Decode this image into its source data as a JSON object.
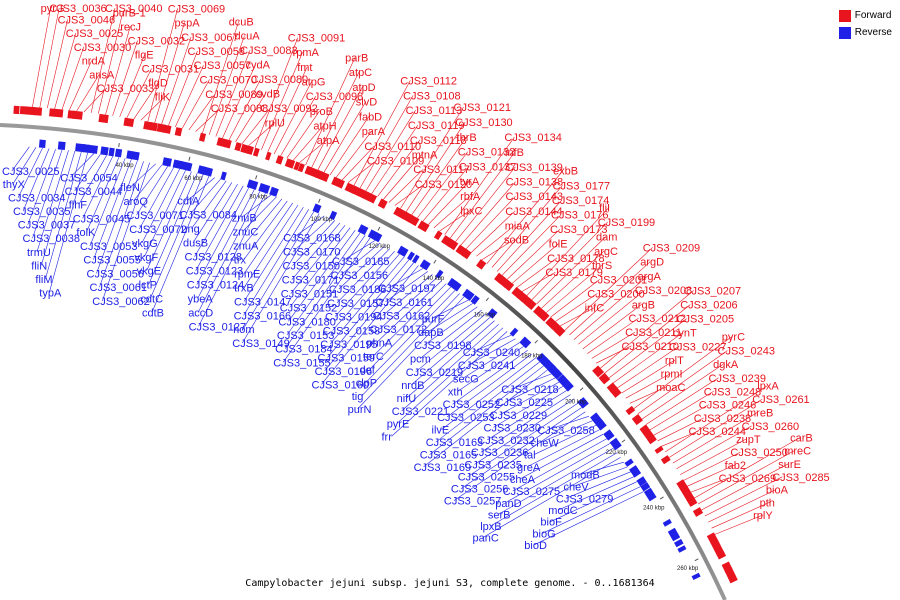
{
  "caption": "Campylobacter jejuni subsp. jejuni S3, complete genome. - 0..1681364",
  "legend": [
    {
      "label": "Forward",
      "color": "#e8141e"
    },
    {
      "label": "Reverse",
      "color": "#1f22e6"
    }
  ],
  "ticks": [
    "40 kbp",
    "60 kbp",
    "80 kbp",
    "100 kbp",
    "120 kbp",
    "140 kbp",
    "160 kbp",
    "180 kbp",
    "200 kbp",
    "220 kbp",
    "240 kbp",
    "260 kbp"
  ],
  "forward_labels": [
    "pyrG",
    "CJS3_0036",
    "CJS3_0046",
    "CJS3_0025",
    "CJS3_0030",
    "nrdA",
    "ansA",
    "CJS3_0033",
    "CJS3_0040",
    "purB-1",
    "recJ",
    "CJS3_0032",
    "flgE",
    "CJS3_0031",
    "flgD",
    "fliK",
    "CJS3_0069",
    "pspA",
    "CJS3_0067",
    "CJS3_0058",
    "CJS3_0057",
    "CJS3_0070",
    "CJS3_0089",
    "CJS3_0088",
    "dcuB",
    "dcuA",
    "CJS3_0083",
    "cydA",
    "CJS3_0080",
    "cvdB",
    "CJS3_0092",
    "rplU",
    "CJS3_0091",
    "rpmA",
    "fmt",
    "atpG",
    "CJS3_0098",
    "proB",
    "atpH",
    "atpA",
    "parB",
    "atpC",
    "atpD",
    "slvD",
    "fabD",
    "parA",
    "CJS3_0110",
    "CJS3_0109",
    "CJS3_0112",
    "CJS3_0108",
    "CJS3_0113",
    "CJS3_0119",
    "CJS3_0118",
    "mtnA",
    "CJS3_0117",
    "CJS3_0120",
    "CJS3_0121",
    "CJS3_0130",
    "thrB",
    "CJS3_0132",
    "CJS3_0137",
    "tyrA",
    "rbfA",
    "lpxC",
    "CJS3_0134",
    "infB",
    "CJS3_0139",
    "CJS3_0138",
    "CJS3_0143",
    "CJS3_0144",
    "miaA",
    "sodB",
    "exbB",
    "CJS3_0177",
    "CJS3_0174",
    "CJS3_0176",
    "CJS3_0173",
    "folE",
    "CJS3_0178",
    "CJS3_0179",
    "fliI",
    "CJS3_0199",
    "dam",
    "argC",
    "thrS",
    "CJS3_0201",
    "CJS3_0200",
    "infC",
    "CJS3_0209",
    "argD",
    "argA",
    "CJS3_0208",
    "argB",
    "CJS3_0212",
    "CJS3_0211",
    "CJS3_0210",
    "CJS3_0207",
    "CJS3_0206",
    "CJS3_0205",
    "cynT",
    "CJS3_0227",
    "rplT",
    "rpmI",
    "moaC",
    "pyrC",
    "CJS3_0243",
    "dgkA",
    "CJS3_0239",
    "CJS3_0248",
    "CJS3_0246",
    "CJS3_0238",
    "CJS3_0244",
    "lpxA",
    "CJS3_0261",
    "mreB",
    "CJS3_0260",
    "zupT",
    "CJS3_0250",
    "fab2",
    "CJS3_0269",
    "carB",
    "mreC",
    "surE",
    "CJS3_0285",
    "bioA",
    "pth",
    "rplY"
  ],
  "reverse_labels": [
    "CJS3_0025",
    "thyX",
    "CJS3_0034",
    "CJS3_0035",
    "CJS3_0037",
    "CJS3_0038",
    "trmU",
    "fliN",
    "fliM",
    "typA",
    "CJS3_0054",
    "CJS3_0044",
    "flhF",
    "CJS3_0045",
    "folK",
    "CJS3_0053",
    "CJS3_0055",
    "CJS3_0056",
    "CJS3_0061",
    "CJS3_0062",
    "fleN",
    "aroQ",
    "CJS3_0071",
    "CJS3_0072",
    "vkgG",
    "vkgF",
    "vkgE",
    "lctP",
    "cdtC",
    "cdtB",
    "cdtA",
    "CJS3_0084",
    "ung",
    "dusB",
    "CJS3_0128",
    "CJS3_0123",
    "CJS3_0124",
    "ybeA",
    "accD",
    "CJS3_0127",
    "znuB",
    "znuC",
    "znuA",
    "trx",
    "rpmE",
    "trxB",
    "CJS3_0147",
    "CJS3_0166",
    "hom",
    "CJS3_0149",
    "CJS3_0168",
    "CJS3_0170",
    "CJS3_0150",
    "CJS3_0171",
    "CJS3_0151",
    "CJS3_0152",
    "CJS3_0180",
    "CJS3_0153",
    "CJS3_0184",
    "CJS3_0155",
    "CJS3_0185",
    "CJS3_0156",
    "CJS3_0186",
    "CJS3_0157",
    "CJS3_0194",
    "CJS3_0158",
    "CJS3_0195",
    "CJS3_0159",
    "CJS3_0196",
    "CJS3_0160",
    "CJS3_0197",
    "CJS3_0161",
    "CJS3_0162",
    "CJS3_0172",
    "phnA",
    "terC",
    "def",
    "clpP",
    "tig",
    "purN",
    "purF",
    "dapB",
    "CJS3_0198",
    "pcm",
    "CJS3_0219",
    "nrdB",
    "nifU",
    "CJS3_0221",
    "pyrE",
    "frr",
    "CJS3_0240",
    "CJS3_0241",
    "secG",
    "xth",
    "CJS3_0252",
    "CJS3_0253",
    "ilvE",
    "CJS3_0163",
    "CJS3_0165",
    "CJS3_0169",
    "CJS3_0218",
    "CJS3_0225",
    "CJS3_0229",
    "CJS3_0230",
    "CJS3_0232",
    "CJS3_0236",
    "CJS3_0235",
    "CJS3_0255",
    "CJS3_0256",
    "CJS3_0257",
    "CJS3_0258",
    "cheW",
    "tal",
    "greA",
    "cheA",
    "CJS3_0275",
    "panD",
    "serB",
    "lpxB",
    "panC",
    "modB",
    "cheV",
    "CJS3_0279",
    "modC",
    "bioF",
    "bioG",
    "bioD"
  ]
}
